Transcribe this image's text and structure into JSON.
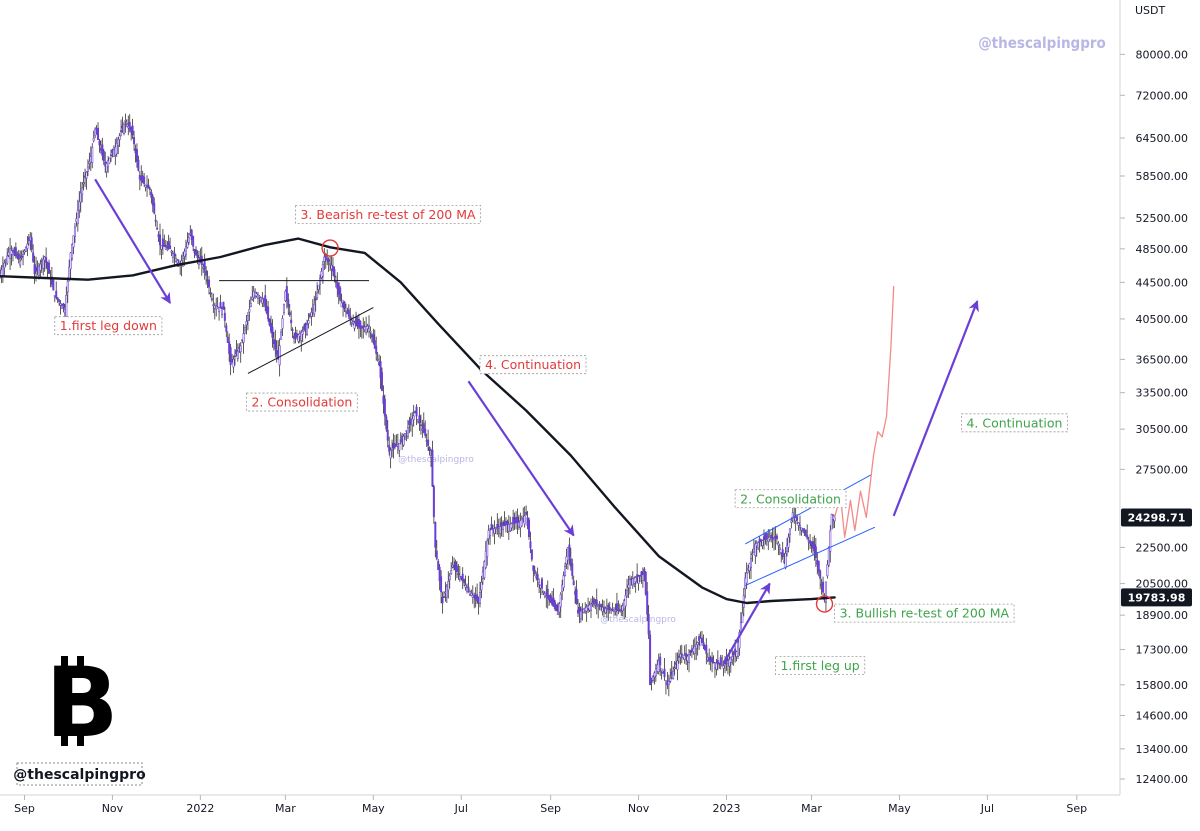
{
  "chart_data": {
    "type": "candlestick",
    "symbol_unit": "USDT",
    "y_scale": "log",
    "ylim": [
      11900,
      92000
    ],
    "xlim": [
      "2021-08-15",
      "2023-10-01"
    ],
    "x_ticks": [
      {
        "label": "Sep",
        "date": "2021-09-01"
      },
      {
        "label": "Nov",
        "date": "2021-11-01"
      },
      {
        "label": "2022",
        "date": "2022-01-01"
      },
      {
        "label": "Mar",
        "date": "2022-03-01"
      },
      {
        "label": "May",
        "date": "2022-05-01"
      },
      {
        "label": "Jul",
        "date": "2022-07-01"
      },
      {
        "label": "Sep",
        "date": "2022-09-01"
      },
      {
        "label": "Nov",
        "date": "2022-11-01"
      },
      {
        "label": "2023",
        "date": "2023-01-01"
      },
      {
        "label": "Mar",
        "date": "2023-03-01"
      },
      {
        "label": "May",
        "date": "2023-05-01"
      },
      {
        "label": "Jul",
        "date": "2023-07-01"
      },
      {
        "label": "Sep",
        "date": "2023-09-01"
      }
    ],
    "y_ticks": [
      "80000.00",
      "72000.00",
      "64500.00",
      "58500.00",
      "52500.00",
      "48500.00",
      "44500.00",
      "40500.00",
      "36500.00",
      "33500.00",
      "30500.00",
      "27500.00",
      "22500.00",
      "20500.00",
      "18900.00",
      "17300.00",
      "15800.00",
      "14600.00",
      "13400.00",
      "12400.00"
    ],
    "price_tags": [
      {
        "label": "24298.71",
        "value": 24298.71,
        "color": "#131722",
        "text_color": "#ffffff",
        "role": "last-price"
      },
      {
        "label": "19783.98",
        "value": 19783.98,
        "color": "#131722",
        "text_color": "#ffffff",
        "role": "ma-value"
      }
    ],
    "price_path": [
      [
        "2021-08-15",
        45500
      ],
      [
        "2021-08-22",
        48500
      ],
      [
        "2021-08-29",
        47000
      ],
      [
        "2021-09-05",
        50000
      ],
      [
        "2021-09-08",
        45500
      ],
      [
        "2021-09-15",
        47500
      ],
      [
        "2021-09-22",
        43000
      ],
      [
        "2021-09-29",
        41500
      ],
      [
        "2021-10-03",
        48000
      ],
      [
        "2021-10-10",
        56000
      ],
      [
        "2021-10-17",
        61500
      ],
      [
        "2021-10-20",
        66000
      ],
      [
        "2021-10-27",
        60000
      ],
      [
        "2021-11-03",
        63000
      ],
      [
        "2021-11-10",
        67500
      ],
      [
        "2021-11-15",
        65000
      ],
      [
        "2021-11-20",
        58000
      ],
      [
        "2021-11-27",
        56500
      ],
      [
        "2021-12-04",
        49000
      ],
      [
        "2021-12-11",
        48500
      ],
      [
        "2021-12-18",
        46500
      ],
      [
        "2021-12-25",
        50500
      ],
      [
        "2021-12-28",
        48000
      ],
      [
        "2022-01-04",
        46000
      ],
      [
        "2022-01-10",
        42000
      ],
      [
        "2022-01-17",
        41500
      ],
      [
        "2022-01-22",
        36000
      ],
      [
        "2022-01-29",
        37800
      ],
      [
        "2022-02-07",
        43500
      ],
      [
        "2022-02-14",
        42500
      ],
      [
        "2022-02-21",
        38000
      ],
      [
        "2022-02-24",
        36500
      ],
      [
        "2022-03-01",
        43500
      ],
      [
        "2022-03-07",
        38500
      ],
      [
        "2022-03-15",
        39500
      ],
      [
        "2022-03-22",
        42500
      ],
      [
        "2022-03-28",
        47500
      ],
      [
        "2022-04-02",
        46500
      ],
      [
        "2022-04-08",
        42500
      ],
      [
        "2022-04-15",
        40500
      ],
      [
        "2022-04-22",
        39500
      ],
      [
        "2022-04-28",
        39800
      ],
      [
        "2022-05-05",
        36000
      ],
      [
        "2022-05-10",
        30500
      ],
      [
        "2022-05-12",
        28800
      ],
      [
        "2022-05-20",
        29500
      ],
      [
        "2022-05-30",
        31800
      ],
      [
        "2022-06-06",
        30000
      ],
      [
        "2022-06-10",
        28500
      ],
      [
        "2022-06-13",
        22500
      ],
      [
        "2022-06-18",
        19500
      ],
      [
        "2022-06-25",
        21500
      ],
      [
        "2022-07-05",
        20300
      ],
      [
        "2022-07-13",
        19500
      ],
      [
        "2022-07-20",
        23500
      ],
      [
        "2022-07-30",
        23800
      ],
      [
        "2022-08-10",
        24000
      ],
      [
        "2022-08-15",
        24500
      ],
      [
        "2022-08-20",
        21200
      ],
      [
        "2022-08-27",
        20100
      ],
      [
        "2022-09-06",
        19000
      ],
      [
        "2022-09-13",
        22500
      ],
      [
        "2022-09-20",
        19000
      ],
      [
        "2022-09-30",
        19500
      ],
      [
        "2022-10-10",
        19200
      ],
      [
        "2022-10-20",
        19100
      ],
      [
        "2022-10-26",
        20700
      ],
      [
        "2022-11-05",
        21000
      ],
      [
        "2022-11-08",
        18000
      ],
      [
        "2022-11-09",
        15800
      ],
      [
        "2022-11-15",
        16800
      ],
      [
        "2022-11-21",
        15800
      ],
      [
        "2022-11-30",
        17100
      ],
      [
        "2022-12-05",
        17000
      ],
      [
        "2022-12-14",
        17800
      ],
      [
        "2022-12-20",
        16800
      ],
      [
        "2022-12-30",
        16600
      ],
      [
        "2023-01-08",
        17200
      ],
      [
        "2023-01-12",
        19000
      ],
      [
        "2023-01-14",
        20800
      ],
      [
        "2023-01-21",
        22700
      ],
      [
        "2023-01-31",
        23100
      ],
      [
        "2023-02-05",
        23000
      ],
      [
        "2023-02-10",
        21700
      ],
      [
        "2023-02-16",
        24600
      ],
      [
        "2023-02-25",
        23200
      ],
      [
        "2023-03-03",
        22300
      ],
      [
        "2023-03-10",
        19700
      ],
      [
        "2023-03-13",
        22500
      ],
      [
        "2023-03-15",
        24500
      ],
      [
        "2023-03-17",
        24298.71
      ]
    ],
    "series": [
      {
        "name": "200 MA",
        "color": "#131722",
        "points": [
          [
            "2021-08-15",
            45200
          ],
          [
            "2021-09-15",
            45000
          ],
          [
            "2021-10-15",
            44800
          ],
          [
            "2021-11-15",
            45300
          ],
          [
            "2021-12-15",
            46500
          ],
          [
            "2022-01-15",
            47500
          ],
          [
            "2022-02-15",
            49000
          ],
          [
            "2022-03-10",
            49800
          ],
          [
            "2022-04-01",
            48700
          ],
          [
            "2022-04-25",
            48000
          ],
          [
            "2022-05-20",
            44500
          ],
          [
            "2022-06-15",
            40000
          ],
          [
            "2022-07-15",
            35500
          ],
          [
            "2022-08-15",
            32000
          ],
          [
            "2022-09-15",
            28500
          ],
          [
            "2022-10-15",
            25000
          ],
          [
            "2022-11-15",
            22000
          ],
          [
            "2022-12-15",
            20300
          ],
          [
            "2023-01-01",
            19700
          ],
          [
            "2023-01-15",
            19500
          ],
          [
            "2023-02-01",
            19600
          ],
          [
            "2023-03-01",
            19700
          ],
          [
            "2023-03-17",
            19783.98
          ]
        ]
      },
      {
        "name": "projection",
        "color": "#f28b8b",
        "points": [
          [
            "2023-03-17",
            24300
          ],
          [
            "2023-03-21",
            25700
          ],
          [
            "2023-03-24",
            23100
          ],
          [
            "2023-03-28",
            25400
          ],
          [
            "2023-03-31",
            23500
          ],
          [
            "2023-04-04",
            26000
          ],
          [
            "2023-04-08",
            24300
          ],
          [
            "2023-04-13",
            28500
          ],
          [
            "2023-04-16",
            30300
          ],
          [
            "2023-04-19",
            29900
          ],
          [
            "2023-04-22",
            31500
          ],
          [
            "2023-04-25",
            37500
          ],
          [
            "2023-04-27",
            44000
          ]
        ]
      }
    ],
    "annotations": [
      {
        "label": "1.first leg down",
        "color": "#e23a3a",
        "anchor": [
          "2021-09-22",
          39800
        ]
      },
      {
        "label": "2. Consolidation",
        "color": "#e23a3a",
        "anchor": [
          "2022-02-02",
          32700
        ]
      },
      {
        "label": "3. Bearish re-test of 200 MA",
        "color": "#e23a3a",
        "anchor": [
          "2022-03-08",
          53000
        ]
      },
      {
        "label": "4. Continuation",
        "color": "#e23a3a",
        "anchor": [
          "2022-07-14",
          36000
        ]
      },
      {
        "label": "2. Consolidation",
        "color": "#3fa34d",
        "anchor": [
          "2023-01-07",
          25500
        ]
      },
      {
        "label": "1.first leg up",
        "color": "#3fa34d",
        "anchor": [
          "2023-02-04",
          16600
        ]
      },
      {
        "label": "3. Bullish re-test of 200 MA",
        "color": "#3fa34d",
        "anchor": [
          "2023-03-17",
          19000
        ]
      },
      {
        "label": "4. Continuation",
        "color": "#3fa34d",
        "anchor": [
          "2023-06-13",
          31000
        ]
      }
    ],
    "trendlines": [
      {
        "role": "arrow",
        "color": "#6a3fd6",
        "from": [
          "2021-10-20",
          58000
        ],
        "to": [
          "2021-12-11",
          42200
        ]
      },
      {
        "role": "arrow",
        "color": "#6a3fd6",
        "from": [
          "2022-07-06",
          34500
        ],
        "to": [
          "2022-09-17",
          23200
        ]
      },
      {
        "role": "arrow",
        "color": "#6a3fd6",
        "from": [
          "2022-12-30",
          16700
        ],
        "to": [
          "2023-01-31",
          20500
        ]
      },
      {
        "role": "arrow",
        "color": "#6a3fd6",
        "from": [
          "2023-04-27",
          24400
        ],
        "to": [
          "2023-06-24",
          42400
        ]
      },
      {
        "role": "resistance",
        "color": "#131722",
        "from": [
          "2022-01-14",
          44700
        ],
        "to": [
          "2022-04-28",
          44700
        ]
      },
      {
        "role": "support",
        "color": "#131722",
        "from": [
          "2022-02-03",
          35200
        ],
        "to": [
          "2022-05-01",
          41700
        ]
      },
      {
        "role": "channel-upper",
        "color": "#2962ff",
        "from": [
          "2023-01-14",
          22700
        ],
        "to": [
          "2023-04-11",
          27100
        ]
      },
      {
        "role": "channel-lower",
        "color": "#2962ff",
        "from": [
          "2023-01-14",
          20400
        ],
        "to": [
          "2023-04-14",
          23700
        ]
      }
    ],
    "markers": [
      {
        "role": "bearish-retest-circle",
        "color": "#e23a3a",
        "at": [
          "2022-04-01",
          48600
        ]
      },
      {
        "role": "bullish-retest-circle",
        "color": "#e23a3a",
        "at": [
          "2023-03-10",
          19450
        ]
      }
    ],
    "colors": {
      "candles": "#6a3fd6",
      "wicks": "#333333",
      "ma": "#131722",
      "projection": "#f28b8b",
      "channel": "#2962ff",
      "arrows": "#6a3fd6",
      "bearish_text": "#e23a3a",
      "bullish_text": "#3fa34d",
      "watermark": "#b9b6e6"
    }
  },
  "branding": {
    "watermark_top": "@thescalpingpro",
    "watermark_center": "@thescalpingpro",
    "watermark_low": "@thescalpingpro",
    "logo_symbol": "B",
    "logo_handle": "@thescalpingpro",
    "logo_icon": "bitcoin-icon"
  }
}
